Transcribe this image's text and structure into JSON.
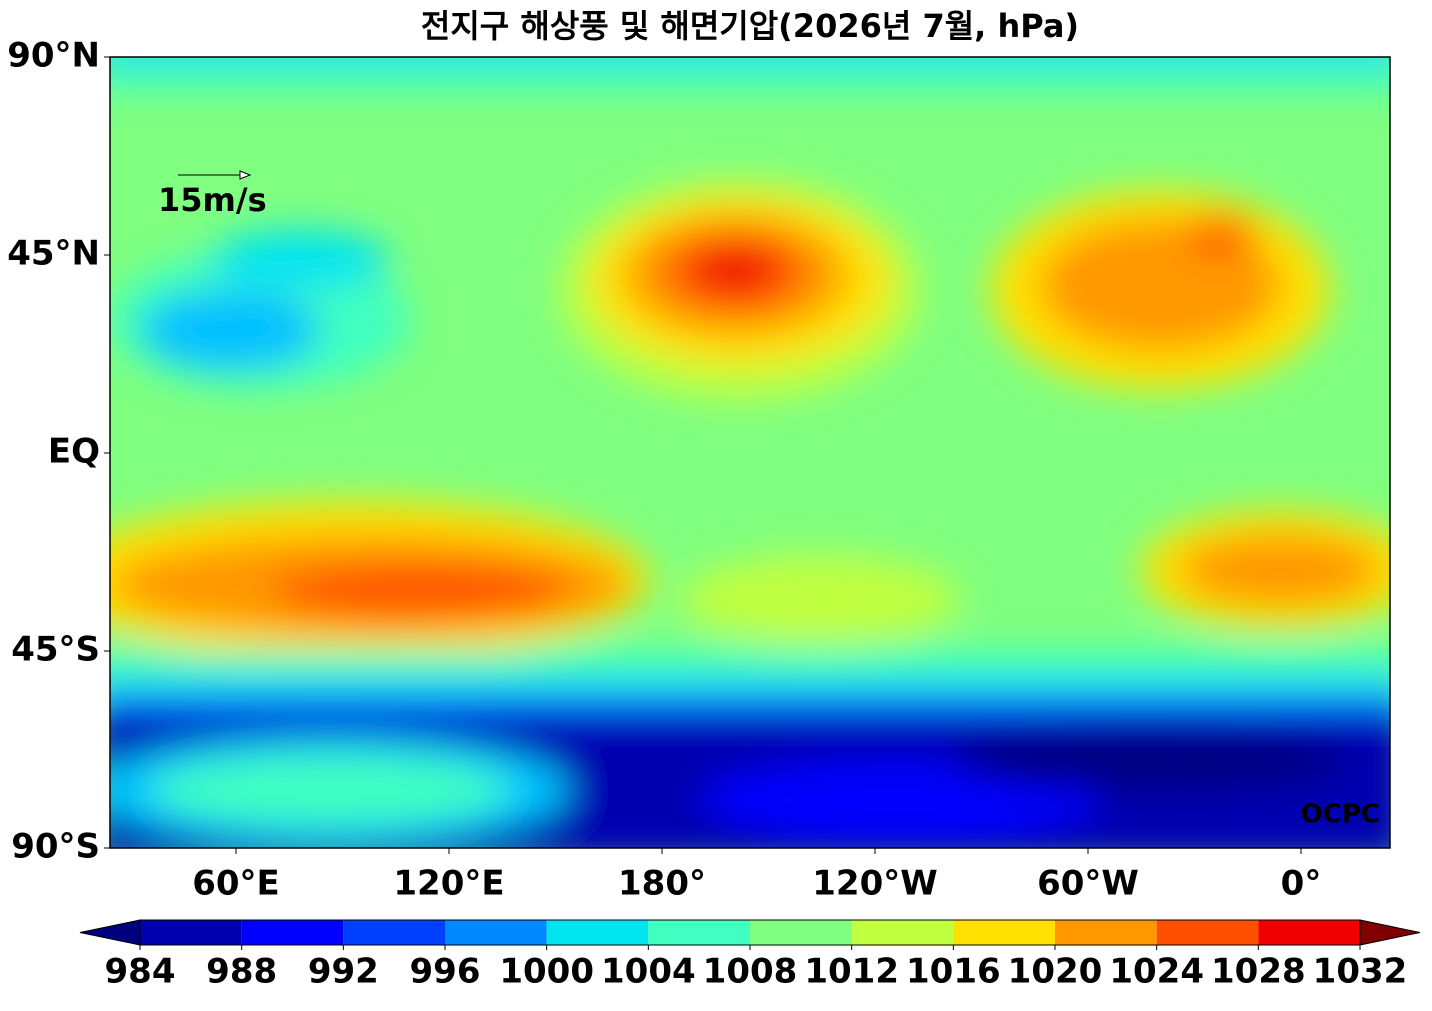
{
  "map": {
    "title": "전지구 해상풍 및 해면기압(2026년 7월, hPa)",
    "lat_labels": [
      "90°N",
      "45°N",
      "EQ",
      "45°S",
      "90°S"
    ],
    "lon_labels": [
      "60°E",
      "120°E",
      "180°",
      "120°W",
      "60°W",
      "0°"
    ],
    "reference_vector_label": "15m/s",
    "credit": "OCPC"
  },
  "colorbar": {
    "ticks": [
      984,
      988,
      992,
      996,
      1000,
      1004,
      1008,
      1012,
      1016,
      1020,
      1024,
      1028,
      1032
    ],
    "colors": [
      "#0000b0",
      "#0000ff",
      "#0040ff",
      "#0088ff",
      "#00e4f0",
      "#40ffc0",
      "#80ff80",
      "#c0ff40",
      "#ffe000",
      "#ff9800",
      "#ff5000",
      "#f00000"
    ],
    "under_color": "#00007f",
    "over_color": "#800000"
  }
}
